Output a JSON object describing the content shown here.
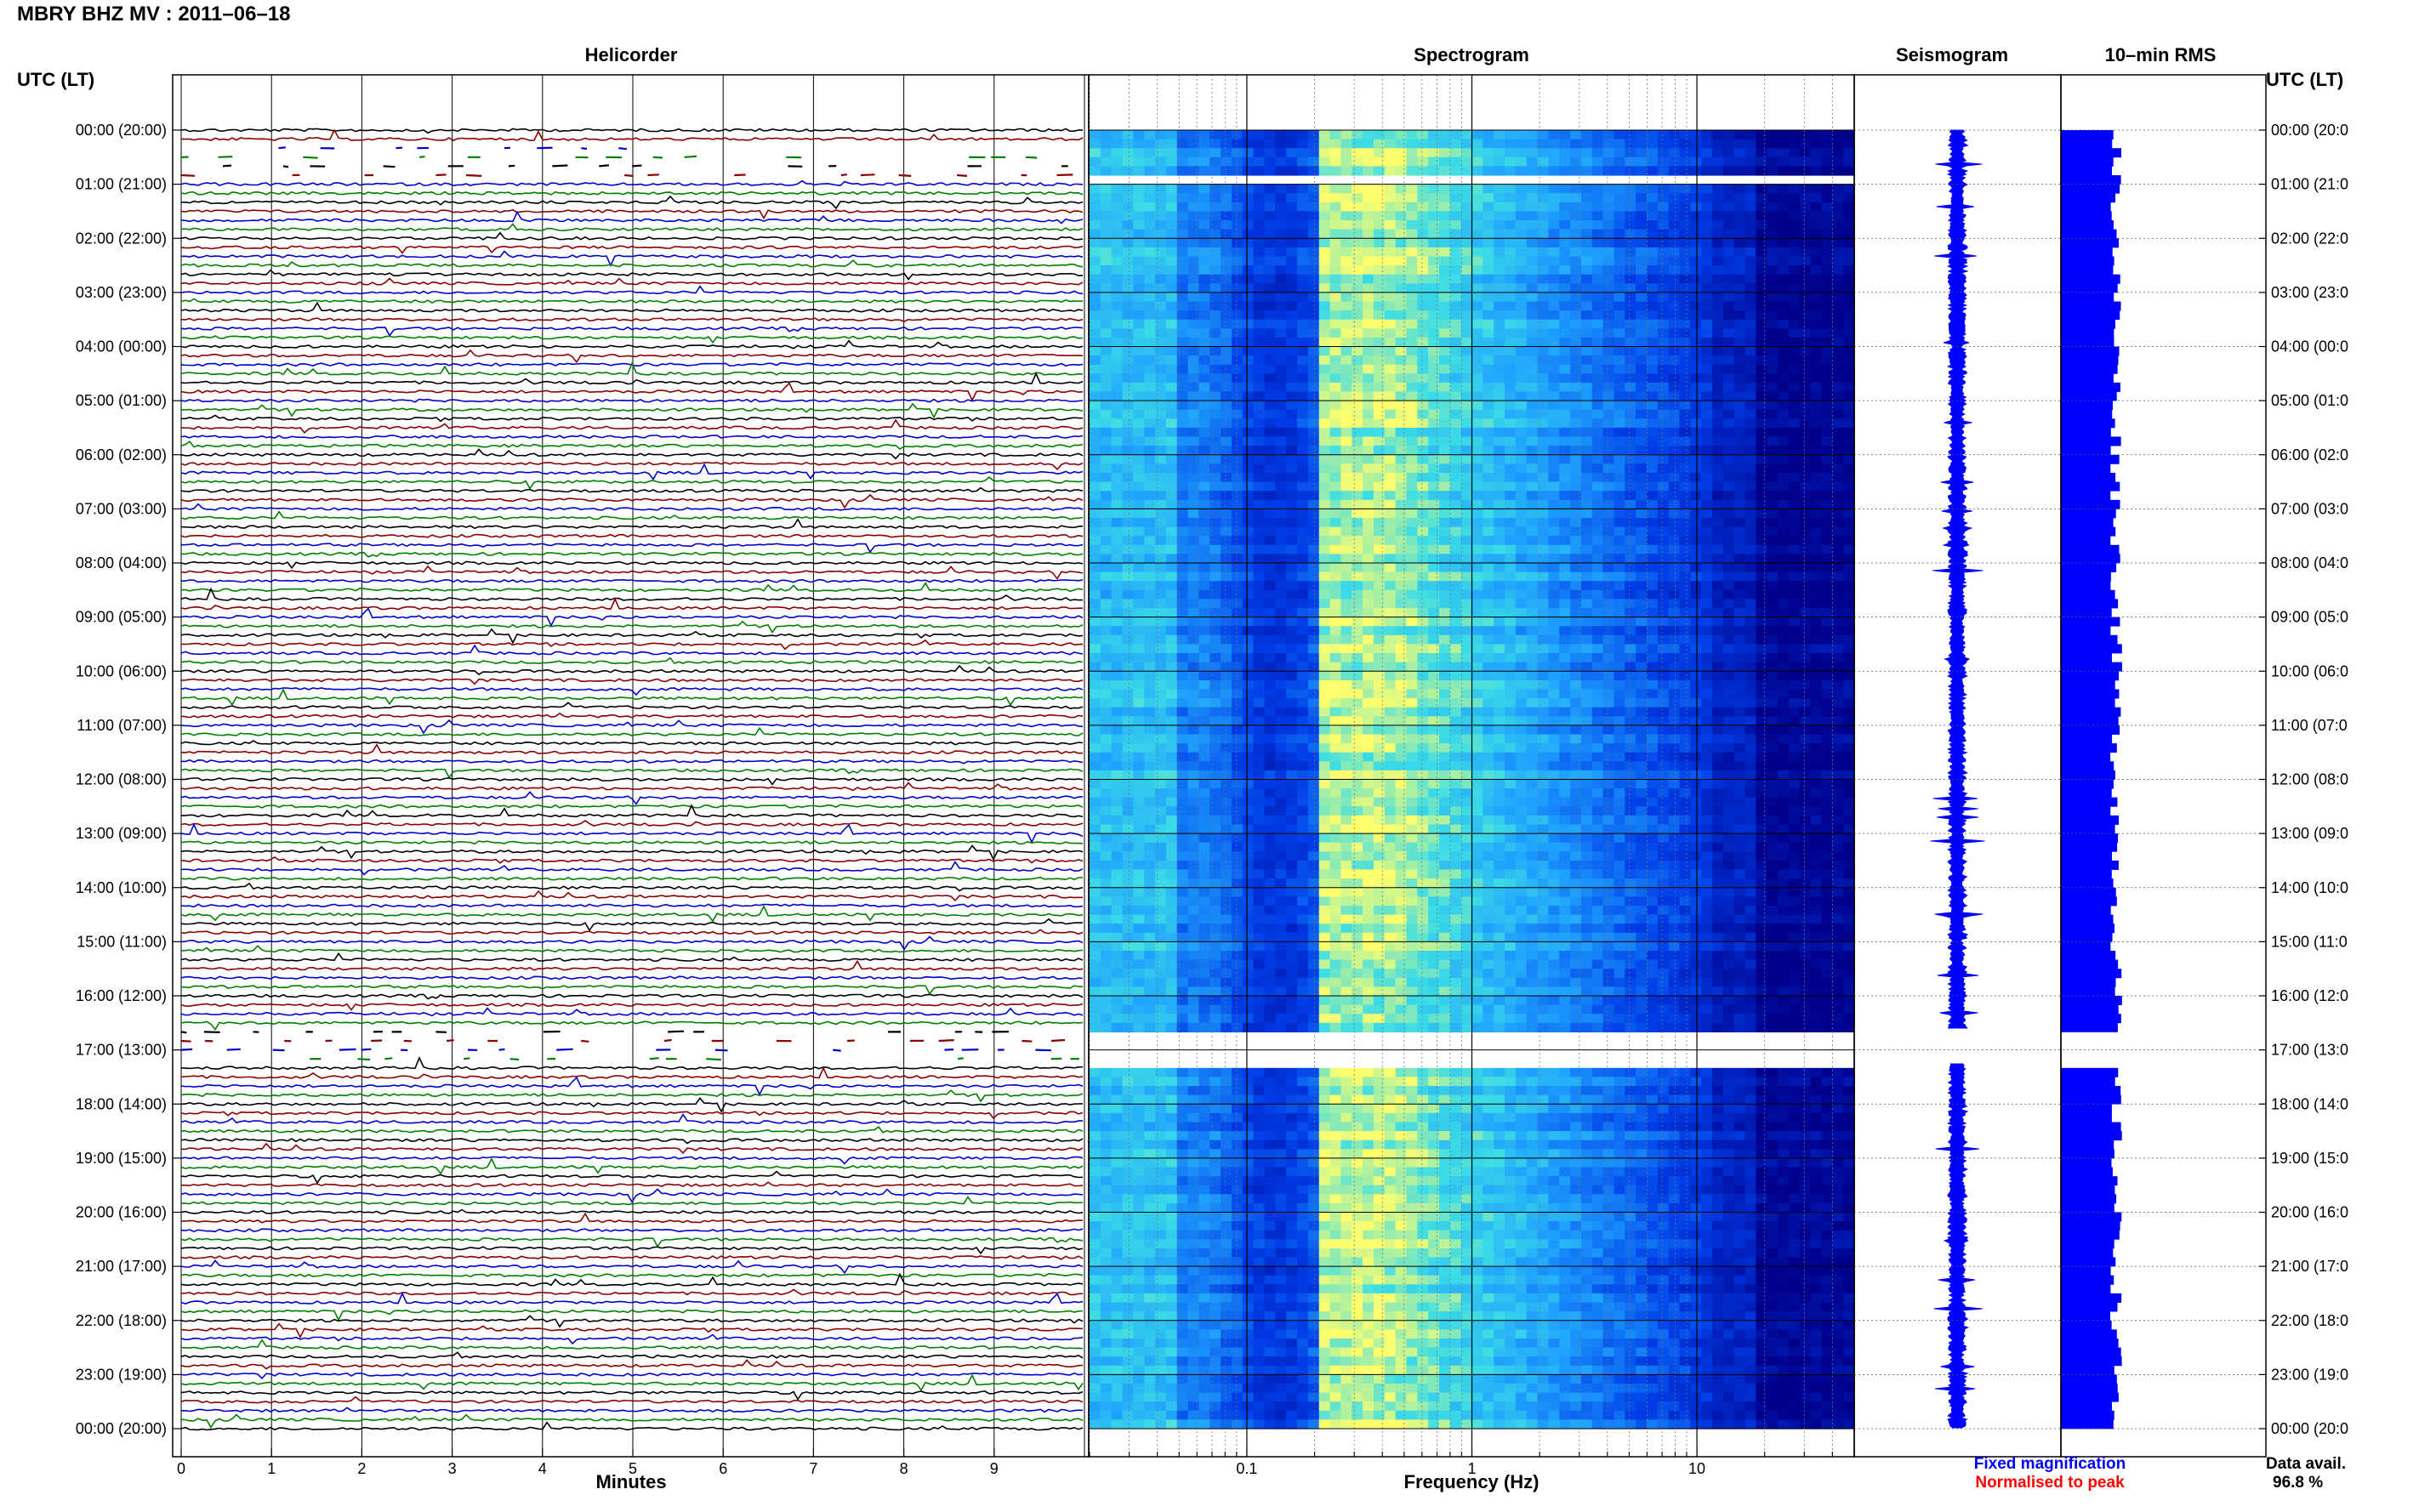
{
  "header": {
    "title": "MBRY BHZ MV : 2011–06–18",
    "utc_label_left": "UTC (LT)",
    "utc_label_right": "UTC (LT)"
  },
  "panels": {
    "helicorder": "Helicorder",
    "spectrogram": "Spectrogram",
    "seismogram": "Seismogram",
    "rms": "10–min RMS"
  },
  "time_labels": [
    "00:00 (20:00)",
    "01:00 (21:00)",
    "02:00 (22:00)",
    "03:00 (23:00)",
    "04:00 (00:00)",
    "05:00 (01:00)",
    "06:00 (02:00)",
    "07:00 (03:00)",
    "08:00 (04:00)",
    "09:00 (05:00)",
    "10:00 (06:00)",
    "11:00 (07:00)",
    "12:00 (08:00)",
    "13:00 (09:00)",
    "14:00 (10:00)",
    "15:00 (11:00)",
    "16:00 (12:00)",
    "17:00 (13:00)",
    "18:00 (14:00)",
    "19:00 (15:00)",
    "20:00 (16:00)",
    "21:00 (17:00)",
    "22:00 (18:00)",
    "23:00 (19:00)",
    "00:00 (20:00)"
  ],
  "right_time_labels": [
    "00:00 (20:0",
    "01:00 (21:0",
    "02:00 (22:0",
    "03:00 (23:0",
    "04:00 (00:0",
    "05:00 (01:0",
    "06:00 (02:0",
    "07:00 (03:0",
    "08:00 (04:0",
    "09:00 (05:0",
    "10:00 (06:0",
    "11:00 (07:0",
    "12:00 (08:0",
    "13:00 (09:0",
    "14:00 (10:0",
    "15:00 (11:0",
    "16:00 (12:0",
    "17:00 (13:0",
    "18:00 (14:0",
    "19:00 (15:0",
    "20:00 (16:0",
    "21:00 (17:0",
    "22:00 (18:0",
    "23:00 (19:0",
    "00:00 (20:0"
  ],
  "helicorder_axis": {
    "ticks": [
      "0",
      "1",
      "2",
      "3",
      "4",
      "5",
      "6",
      "7",
      "8",
      "9"
    ],
    "xlabel": "Minutes"
  },
  "spectrogram_axis": {
    "ticks": [
      "0.1",
      "1",
      "10"
    ],
    "xlabel": "Frequency (Hz)"
  },
  "legend": {
    "fixed": "Fixed magnification",
    "normalised": "Normalised to peak",
    "fixed_color": "#0000ff",
    "normalised_color": "#ff0000"
  },
  "availability": {
    "label": "Data avail.",
    "value": "96.8 %"
  },
  "colors": {
    "trace_cycle": [
      "#000000",
      "#8b0000",
      "#0000cd",
      "#008000"
    ],
    "seismogram": "#0000ff",
    "rms": "#0000ff",
    "spectrogram_low": "#00008b",
    "spectrogram_high": "#ffff66"
  },
  "chart_data": [
    {
      "type": "line",
      "name": "helicorder",
      "title": "Helicorder",
      "xlabel": "Minutes",
      "xlim": [
        0,
        10
      ],
      "lines_per_hour": 6,
      "minutes_per_line": 10,
      "gaps_utc_hours": [
        [
          0.33,
          0.95
        ],
        [
          16.6,
          17.25
        ]
      ]
    },
    {
      "type": "heatmap",
      "name": "spectrogram",
      "title": "Spectrogram",
      "xlabel": "Frequency (Hz)",
      "x_scale": "log",
      "xlim": [
        0.02,
        50
      ],
      "gaps_utc_hours": [
        [
          0.45,
          0.55
        ],
        [
          0.85,
          0.95
        ],
        [
          16.6,
          17.4
        ]
      ],
      "peak_band_hz": [
        0.2,
        0.4
      ]
    },
    {
      "type": "line",
      "name": "seismogram",
      "title": "Seismogram",
      "gaps_utc_hours": [
        [
          16.6,
          17.25
        ]
      ]
    },
    {
      "type": "bar",
      "name": "rms",
      "title": "10–min RMS",
      "interval_minutes": 10,
      "gaps_utc_hours": [
        [
          16.6,
          17.25
        ]
      ]
    }
  ]
}
